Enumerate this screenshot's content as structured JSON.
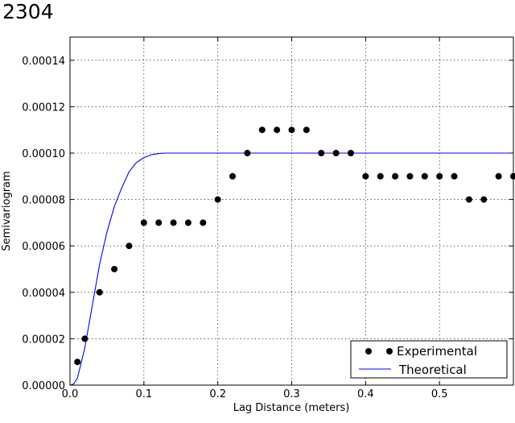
{
  "page_title": "2304",
  "chart_data": {
    "type": "scatter",
    "title": "",
    "xlabel": "Lag Distance (meters)",
    "ylabel": "Semivariogram",
    "xlim": [
      0.0,
      0.6
    ],
    "ylim": [
      0.0,
      0.00015
    ],
    "grid": true,
    "legend_position": "lower-right",
    "x_ticks": [
      {
        "value": 0.0,
        "label": "0.0"
      },
      {
        "value": 0.1,
        "label": "0.1"
      },
      {
        "value": 0.2,
        "label": "0.2"
      },
      {
        "value": 0.3,
        "label": "0.3"
      },
      {
        "value": 0.4,
        "label": "0.4"
      },
      {
        "value": 0.5,
        "label": "0.5"
      }
    ],
    "y_ticks": [
      {
        "value": 0.0,
        "label": "0.00000"
      },
      {
        "value": 2e-05,
        "label": "0.00002"
      },
      {
        "value": 4e-05,
        "label": "0.00004"
      },
      {
        "value": 6e-05,
        "label": "0.00006"
      },
      {
        "value": 8e-05,
        "label": "0.00008"
      },
      {
        "value": 0.0001,
        "label": "0.00010"
      },
      {
        "value": 0.00012,
        "label": "0.00012"
      },
      {
        "value": 0.00014,
        "label": "0.00014"
      }
    ],
    "series": [
      {
        "name": "Experimental",
        "type": "scatter",
        "color": "#000000",
        "x": [
          0.01,
          0.02,
          0.04,
          0.06,
          0.08,
          0.1,
          0.12,
          0.14,
          0.16,
          0.18,
          0.2,
          0.22,
          0.24,
          0.26,
          0.28,
          0.3,
          0.32,
          0.34,
          0.36,
          0.38,
          0.4,
          0.42,
          0.44,
          0.46,
          0.48,
          0.5,
          0.52,
          0.54,
          0.56,
          0.58,
          0.6
        ],
        "y": [
          1e-05,
          2e-05,
          4e-05,
          5e-05,
          6e-05,
          7e-05,
          7e-05,
          7e-05,
          7e-05,
          7e-05,
          8e-05,
          9e-05,
          0.0001,
          0.00011,
          0.00011,
          0.00011,
          0.00011,
          0.0001,
          0.0001,
          0.0001,
          9e-05,
          9e-05,
          9e-05,
          9e-05,
          9e-05,
          9e-05,
          9e-05,
          8e-05,
          8e-05,
          9e-05,
          9e-05
        ]
      },
      {
        "name": "Theoretical",
        "type": "line",
        "color": "#0000ff",
        "x": [
          0.0,
          0.005,
          0.01,
          0.02,
          0.03,
          0.04,
          0.05,
          0.06,
          0.07,
          0.08,
          0.09,
          0.1,
          0.11,
          0.12,
          0.13,
          0.14,
          0.16,
          0.2,
          0.3,
          0.4,
          0.5,
          0.6
        ],
        "y": [
          0.0,
          5e-07,
          3e-06,
          1.6e-05,
          3.4e-05,
          5.2e-05,
          6.6e-05,
          7.7e-05,
          8.5e-05,
          9.2e-05,
          9.6e-05,
          9.8e-05,
          9.93e-05,
          9.98e-05,
          0.0001,
          0.0001,
          0.0001,
          0.0001,
          0.0001,
          0.0001,
          0.0001,
          0.0001
        ]
      }
    ]
  }
}
